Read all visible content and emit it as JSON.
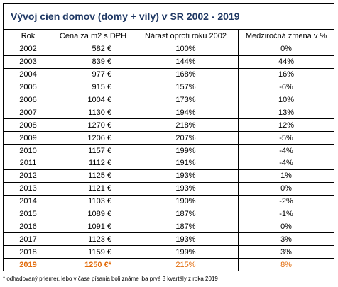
{
  "title": "Vývoj cien domov (domy + vily) v SR  2002 - 2019",
  "table": {
    "header": [
      "Rok",
      "Cena za m2 s DPH",
      "Nárast oproti roku 2002",
      "Medziročná zmena v %"
    ],
    "rows": [
      [
        "2002",
        "582 €",
        "100%",
        "0%"
      ],
      [
        "2003",
        "839 €",
        "144%",
        "44%"
      ],
      [
        "2004",
        "977 €",
        "168%",
        "16%"
      ],
      [
        "2005",
        "915 €",
        "157%",
        "-6%"
      ],
      [
        "2006",
        "1004 €",
        "173%",
        "10%"
      ],
      [
        "2007",
        "1130 €",
        "194%",
        "13%"
      ],
      [
        "2008",
        "1270 €",
        "218%",
        "12%"
      ],
      [
        "2009",
        "1206 €",
        "207%",
        "-5%"
      ],
      [
        "2010",
        "1157 €",
        "199%",
        "-4%"
      ],
      [
        "2011",
        "1112 €",
        "191%",
        "-4%"
      ],
      [
        "2012",
        "1125 €",
        "193%",
        "1%"
      ],
      [
        "2013",
        "1121 €",
        "193%",
        "0%"
      ],
      [
        "2014",
        "1103 €",
        "190%",
        "-2%"
      ],
      [
        "2015",
        "1089 €",
        "187%",
        "-1%"
      ],
      [
        "2016",
        "1091 €",
        "187%",
        "0%"
      ],
      [
        "2017",
        "1123 €",
        "193%",
        "3%"
      ],
      [
        "2018",
        "1159 €",
        "199%",
        "3%"
      ],
      [
        "2019",
        "1250 €*",
        "215%",
        "8%"
      ]
    ]
  },
  "footnote": "* odhadovaný priemer, lebo v čase písania boli známe iba prvé 3 kvartály z roka 2019"
}
